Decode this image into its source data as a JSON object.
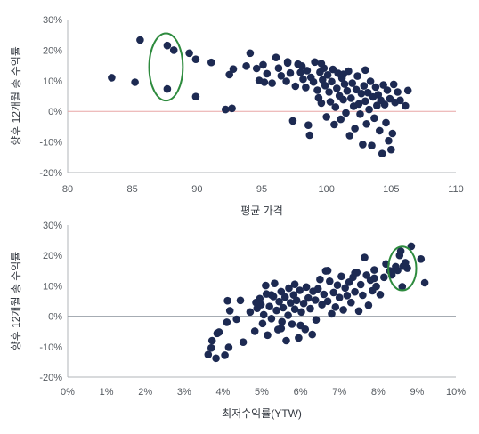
{
  "chart_data": [
    {
      "type": "scatter",
      "xlabel": "평균 가격",
      "ylabel": "향후 12개월 총 수익률",
      "xlim": [
        80,
        110
      ],
      "ylim": [
        -20,
        30
      ],
      "x_ticks": [
        "80",
        "85",
        "90",
        "95",
        "100",
        "105",
        "110"
      ],
      "y_ticks": [
        "30%",
        "20%",
        "10%",
        "0%",
        "-10%",
        "-20%"
      ],
      "grid": false,
      "zero_line_color": "#e8a6a6",
      "point_color": "#1d2a52",
      "highlight_color": "#2e8b3e",
      "highlight_ellipse": {
        "cx": 87.6,
        "cy": 14.5,
        "rx": 1.3,
        "ry": 11
      },
      "points": [
        [
          83.4,
          11
        ],
        [
          85.2,
          9.5
        ],
        [
          85.6,
          23.3
        ],
        [
          87.7,
          21.5
        ],
        [
          88.2,
          20
        ],
        [
          87.7,
          7.3
        ],
        [
          89.4,
          19
        ],
        [
          89.9,
          17
        ],
        [
          89.9,
          4.8
        ],
        [
          91.1,
          16
        ],
        [
          92.2,
          0.6
        ],
        [
          92.7,
          1
        ],
        [
          92.5,
          12
        ],
        [
          92.8,
          13.8
        ],
        [
          93.8,
          14.8
        ],
        [
          94.1,
          19
        ],
        [
          94.6,
          14
        ],
        [
          94.8,
          10.1
        ],
        [
          95.1,
          15.2
        ],
        [
          95.2,
          9.5
        ],
        [
          95.4,
          12.3
        ],
        [
          95.8,
          9.2
        ],
        [
          96.1,
          17.6
        ],
        [
          96.3,
          14.1
        ],
        [
          96.5,
          11.6
        ],
        [
          96.9,
          9.8
        ],
        [
          97.0,
          16.2
        ],
        [
          97.2,
          12.5
        ],
        [
          97.4,
          -3.1
        ],
        [
          97.6,
          8.2
        ],
        [
          97.8,
          15.4
        ],
        [
          98.0,
          12.7
        ],
        [
          98.1,
          14.8
        ],
        [
          98.2,
          10.5
        ],
        [
          98.4,
          7.8
        ],
        [
          98.5,
          13.3
        ],
        [
          98.6,
          -4.5
        ],
        [
          98.7,
          -7.8
        ],
        [
          98.8,
          11.1
        ],
        [
          99.0,
          9.6
        ],
        [
          99.1,
          16.1
        ],
        [
          99.3,
          6.9
        ],
        [
          99.4,
          4.4
        ],
        [
          99.5,
          12.8
        ],
        [
          99.6,
          2.7
        ],
        [
          99.7,
          10.3
        ],
        [
          99.8,
          14.1
        ],
        [
          99.9,
          8.4
        ],
        [
          100.0,
          -1.8
        ],
        [
          100.1,
          11.9
        ],
        [
          100.2,
          6.3
        ],
        [
          100.3,
          3.1
        ],
        [
          100.4,
          9.7
        ],
        [
          100.5,
          13.7
        ],
        [
          100.6,
          -4.3
        ],
        [
          100.7,
          1.4
        ],
        [
          100.8,
          7.5
        ],
        [
          100.9,
          12.4
        ],
        [
          101.0,
          5.1
        ],
        [
          101.1,
          -2.6
        ],
        [
          101.2,
          10.8
        ],
        [
          101.3,
          3.8
        ],
        [
          101.4,
          8.9
        ],
        [
          101.5,
          -0.5
        ],
        [
          101.6,
          6.7
        ],
        [
          101.7,
          13.1
        ],
        [
          101.8,
          -7.9
        ],
        [
          101.9,
          4.3
        ],
        [
          102.0,
          9.2
        ],
        [
          102.1,
          1.7
        ],
        [
          102.2,
          -5.6
        ],
        [
          102.3,
          7.1
        ],
        [
          102.4,
          11.5
        ],
        [
          102.5,
          2.4
        ],
        [
          102.6,
          -0.9
        ],
        [
          102.7,
          5.8
        ],
        [
          102.8,
          -10.8
        ],
        [
          102.9,
          8.3
        ],
        [
          103.0,
          3.3
        ],
        [
          103.1,
          -4.1
        ],
        [
          103.2,
          6.1
        ],
        [
          103.3,
          0.6
        ],
        [
          103.4,
          9.8
        ],
        [
          103.5,
          -11.2
        ],
        [
          103.6,
          4.7
        ],
        [
          103.7,
          -2.2
        ],
        [
          103.8,
          7.9
        ],
        [
          103.9,
          1.9
        ],
        [
          104.0,
          5.4
        ],
        [
          104.1,
          -6.3
        ],
        [
          104.2,
          3.6
        ],
        [
          104.3,
          -13.8
        ],
        [
          104.4,
          8.6
        ],
        [
          104.5,
          2.2
        ],
        [
          104.6,
          -3.7
        ],
        [
          104.7,
          6.9
        ],
        [
          104.8,
          -9.6
        ],
        [
          104.9,
          4.1
        ],
        [
          105.0,
          -12.5
        ],
        [
          105.1,
          -7.2
        ],
        [
          105.2,
          8.8
        ],
        [
          105.3,
          2.9
        ],
        [
          105.5,
          6.3
        ],
        [
          105.7,
          3.6
        ],
        [
          106.1,
          1.8
        ],
        [
          106.3,
          6.8
        ],
        [
          97.0,
          15.8
        ],
        [
          99.6,
          15.6
        ],
        [
          101.3,
          12.1
        ],
        [
          103.0,
          13.5
        ]
      ]
    },
    {
      "type": "scatter",
      "xlabel": "최저수익률(YTW)",
      "ylabel": "향후 12개월 총 수익률",
      "xlim": [
        0,
        10
      ],
      "ylim": [
        -20,
        30
      ],
      "x_ticks": [
        "0%",
        "1%",
        "2%",
        "3%",
        "4%",
        "5%",
        "6%",
        "7%",
        "8%",
        "9%",
        "10%"
      ],
      "y_ticks": [
        "30%",
        "20%",
        "10%",
        "0%",
        "-10%",
        "-20%"
      ],
      "grid": false,
      "zero_line_color": "#9aa0a8",
      "point_color": "#1d2a52",
      "highlight_color": "#2e8b3e",
      "highlight_ellipse": {
        "cx": 8.62,
        "cy": 15.7,
        "rx": 0.36,
        "ry": 7.2
      },
      "points": [
        [
          3.62,
          -12.6
        ],
        [
          3.7,
          -10.4
        ],
        [
          3.72,
          -8.0
        ],
        [
          3.82,
          -13.8
        ],
        [
          3.85,
          -5.6
        ],
        [
          3.9,
          -5.2
        ],
        [
          4.05,
          -12.8
        ],
        [
          4.1,
          -2.0
        ],
        [
          4.12,
          5.1
        ],
        [
          4.15,
          -10.2
        ],
        [
          4.18,
          1.8
        ],
        [
          4.35,
          -1.0
        ],
        [
          4.45,
          5.2
        ],
        [
          4.52,
          -8.5
        ],
        [
          4.7,
          1.4
        ],
        [
          4.82,
          -4.9
        ],
        [
          4.88,
          2.6
        ],
        [
          4.95,
          5.8
        ],
        [
          4.98,
          3.8
        ],
        [
          5.02,
          -2.4
        ],
        [
          5.05,
          0.5
        ],
        [
          5.1,
          10.1
        ],
        [
          5.12,
          7.3
        ],
        [
          5.15,
          -6.2
        ],
        [
          5.2,
          3.2
        ],
        [
          5.25,
          -0.8
        ],
        [
          5.3,
          6.5
        ],
        [
          5.33,
          10.8
        ],
        [
          5.38,
          1.9
        ],
        [
          5.42,
          -4.4
        ],
        [
          5.45,
          4.8
        ],
        [
          5.5,
          8.1
        ],
        [
          5.52,
          -1.8
        ],
        [
          5.55,
          2.8
        ],
        [
          5.6,
          6.3
        ],
        [
          5.63,
          -8.0
        ],
        [
          5.68,
          0.3
        ],
        [
          5.7,
          9.2
        ],
        [
          5.74,
          4.4
        ],
        [
          5.78,
          -2.6
        ],
        [
          5.82,
          7.0
        ],
        [
          5.85,
          2.3
        ],
        [
          5.9,
          5.2
        ],
        [
          5.95,
          -7.1
        ],
        [
          5.98,
          8.5
        ],
        [
          6.02,
          1.4
        ],
        [
          6.08,
          4.2
        ],
        [
          6.12,
          -4.3
        ],
        [
          6.15,
          9.6
        ],
        [
          6.2,
          6.0
        ],
        [
          6.25,
          2.5
        ],
        [
          6.32,
          8.2
        ],
        [
          6.38,
          5.3
        ],
        [
          6.4,
          -1.2
        ],
        [
          6.45,
          9.0
        ],
        [
          6.5,
          12.1
        ],
        [
          6.55,
          3.8
        ],
        [
          6.6,
          7.2
        ],
        [
          6.65,
          14.9
        ],
        [
          6.7,
          4.9
        ],
        [
          6.75,
          11.5
        ],
        [
          6.8,
          0.8
        ],
        [
          6.85,
          7.8
        ],
        [
          6.9,
          3.0
        ],
        [
          6.95,
          10.2
        ],
        [
          7.0,
          6.1
        ],
        [
          7.05,
          13.1
        ],
        [
          7.1,
          2.1
        ],
        [
          7.15,
          9.3
        ],
        [
          7.2,
          6.8
        ],
        [
          7.25,
          11.2
        ],
        [
          7.3,
          4.5
        ],
        [
          7.35,
          12.8
        ],
        [
          7.4,
          8.0
        ],
        [
          7.45,
          14.4
        ],
        [
          7.5,
          1.7
        ],
        [
          7.55,
          10.4
        ],
        [
          7.6,
          6.9
        ],
        [
          7.65,
          19.3
        ],
        [
          7.7,
          13.5
        ],
        [
          7.75,
          3.6
        ],
        [
          7.8,
          11.9
        ],
        [
          7.85,
          8.4
        ],
        [
          7.9,
          15.2
        ],
        [
          7.95,
          9.8
        ],
        [
          8.05,
          7.1
        ],
        [
          8.15,
          12.8
        ],
        [
          8.2,
          17.2
        ],
        [
          8.3,
          14.9
        ],
        [
          8.35,
          13.6
        ],
        [
          8.45,
          16.3
        ],
        [
          8.5,
          15.1
        ],
        [
          8.58,
          21.4
        ],
        [
          8.62,
          9.7
        ],
        [
          8.7,
          17.6
        ],
        [
          8.75,
          15.8
        ],
        [
          8.85,
          23.0
        ],
        [
          9.1,
          18.8
        ],
        [
          9.2,
          11.0
        ],
        [
          5.25,
          7.0
        ],
        [
          5.85,
          10.5
        ],
        [
          6.7,
          15.0
        ],
        [
          7.4,
          14.2
        ],
        [
          6.0,
          -3.0
        ],
        [
          4.85,
          4.5
        ],
        [
          5.5,
          -4.0
        ],
        [
          6.3,
          -6.0
        ],
        [
          8.55,
          20.0
        ],
        [
          8.65,
          16.5
        ],
        [
          7.9,
          12.5
        ]
      ]
    }
  ]
}
